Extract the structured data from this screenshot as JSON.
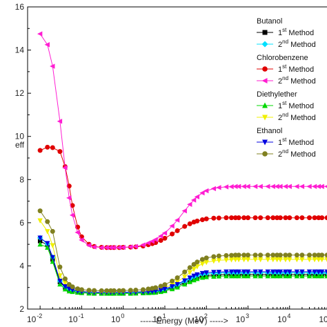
{
  "chart_data": {
    "type": "scatter",
    "title": "",
    "xlabel": "----- Energy (MeV) ----->",
    "ylabel_fragment": "eff",
    "x_scale": "log",
    "xlim": [
      0.005,
      100000
    ],
    "ylim": [
      2,
      16
    ],
    "yticks": [
      2,
      4,
      6,
      8,
      10,
      12,
      14,
      16
    ],
    "ytick_labels": [
      "2",
      "4",
      "6",
      "8",
      "10",
      "12",
      "14",
      "16"
    ],
    "xticks": [
      0.01,
      0.1,
      1,
      10,
      100,
      1000,
      10000,
      100000
    ],
    "xtick_labels": [
      {
        "base": "10",
        "exp": "-2"
      },
      {
        "base": "10",
        "exp": "-1"
      },
      {
        "base": "10",
        "exp": "0"
      },
      {
        "base": "10",
        "exp": "1"
      },
      {
        "base": "10",
        "exp": "2"
      },
      {
        "base": "10",
        "exp": "3"
      },
      {
        "base": "10",
        "exp": "4"
      },
      {
        "base": "10",
        "exp": "5"
      }
    ],
    "grid": false,
    "legend_position": "top-right",
    "legend_groups": [
      {
        "title": "Butanol",
        "entries": [
          {
            "num": "1",
            "sup": "st",
            "text": "Method",
            "series": 0
          },
          {
            "num": "2",
            "sup": "nd",
            "text": "Method",
            "series": 1
          }
        ]
      },
      {
        "title": "Chlorobenzene",
        "entries": [
          {
            "num": "1",
            "sup": "st",
            "text": "Method",
            "series": 2
          },
          {
            "num": "2",
            "sup": "nd",
            "text": "Method",
            "series": 3
          }
        ]
      },
      {
        "title": "Diethylether",
        "entries": [
          {
            "num": "1",
            "sup": "st",
            "text": "Method",
            "series": 4
          },
          {
            "num": "2",
            "sup": "nd",
            "text": "Method",
            "series": 5
          }
        ]
      },
      {
        "title": "Ethanol",
        "entries": [
          {
            "num": "1",
            "sup": "st",
            "text": "Method",
            "series": 6
          },
          {
            "num": "2",
            "sup": "nd",
            "text": "Method",
            "series": 7
          }
        ]
      }
    ],
    "x": [
      0.01,
      0.015,
      0.02,
      0.03,
      0.04,
      0.05,
      0.06,
      0.08,
      0.1,
      0.15,
      0.2,
      0.3,
      0.4,
      0.5,
      0.6,
      0.8,
      1,
      1.5,
      2,
      3,
      4,
      5,
      6,
      8,
      10,
      15,
      20,
      30,
      40,
      50,
      60,
      80,
      100,
      150,
      200,
      300,
      400,
      500,
      600,
      800,
      1000,
      1500,
      2000,
      3000,
      4000,
      5000,
      6000,
      8000,
      10000,
      15000,
      20000,
      30000,
      40000,
      50000,
      60000,
      80000,
      100000
    ],
    "series": [
      {
        "color": "#000000",
        "marker": "square",
        "values": [
          5.15,
          4.97,
          4.3,
          3.25,
          3.0,
          2.9,
          2.86,
          2.81,
          2.79,
          2.77,
          2.76,
          2.76,
          2.76,
          2.76,
          2.76,
          2.76,
          2.76,
          2.76,
          2.76,
          2.77,
          2.78,
          2.79,
          2.8,
          2.84,
          2.88,
          2.98,
          3.07,
          3.22,
          3.33,
          3.41,
          3.47,
          3.53,
          3.56,
          3.58,
          3.59,
          3.6,
          3.6,
          3.6,
          3.6,
          3.6,
          3.6,
          3.6,
          3.6,
          3.6,
          3.6,
          3.6,
          3.6,
          3.6,
          3.6,
          3.6,
          3.6,
          3.6,
          3.6,
          3.6,
          3.6,
          3.6,
          3.6
        ]
      },
      {
        "color": "#00e0ff",
        "marker": "diamond",
        "values": [
          5.3,
          5.02,
          4.4,
          3.3,
          3.05,
          2.93,
          2.88,
          2.83,
          2.8,
          2.78,
          2.77,
          2.77,
          2.77,
          2.77,
          2.77,
          2.77,
          2.77,
          2.77,
          2.77,
          2.78,
          2.79,
          2.8,
          2.82,
          2.86,
          2.91,
          3.02,
          3.12,
          3.28,
          3.4,
          3.49,
          3.55,
          3.61,
          3.64,
          3.66,
          3.67,
          3.68,
          3.68,
          3.68,
          3.68,
          3.68,
          3.68,
          3.68,
          3.68,
          3.68,
          3.68,
          3.68,
          3.68,
          3.68,
          3.68,
          3.68,
          3.68,
          3.68,
          3.68,
          3.68,
          3.68,
          3.68,
          3.68
        ]
      },
      {
        "color": "#e00000",
        "marker": "circle",
        "values": [
          9.35,
          9.5,
          9.48,
          9.3,
          8.6,
          7.7,
          6.8,
          5.8,
          5.35,
          5.0,
          4.9,
          4.86,
          4.85,
          4.85,
          4.85,
          4.85,
          4.86,
          4.87,
          4.88,
          4.92,
          4.98,
          5.03,
          5.08,
          5.18,
          5.28,
          5.48,
          5.63,
          5.83,
          5.95,
          6.03,
          6.08,
          6.14,
          6.18,
          6.21,
          6.22,
          6.23,
          6.23,
          6.23,
          6.23,
          6.23,
          6.23,
          6.23,
          6.23,
          6.23,
          6.23,
          6.23,
          6.23,
          6.23,
          6.23,
          6.23,
          6.23,
          6.23,
          6.23,
          6.23,
          6.23,
          6.23,
          6.23
        ]
      },
      {
        "color": "#ff1ed2",
        "marker": "triangle-left",
        "values": [
          14.75,
          14.25,
          13.25,
          10.7,
          8.55,
          7.15,
          6.35,
          5.55,
          5.2,
          4.95,
          4.88,
          4.85,
          4.85,
          4.85,
          4.85,
          4.85,
          4.86,
          4.88,
          4.9,
          4.97,
          5.06,
          5.14,
          5.22,
          5.38,
          5.52,
          5.85,
          6.12,
          6.55,
          6.85,
          7.05,
          7.2,
          7.38,
          7.48,
          7.58,
          7.63,
          7.66,
          7.67,
          7.68,
          7.68,
          7.68,
          7.68,
          7.68,
          7.68,
          7.68,
          7.68,
          7.68,
          7.68,
          7.68,
          7.68,
          7.68,
          7.68,
          7.68,
          7.68,
          7.68,
          7.68,
          7.68,
          7.68
        ]
      },
      {
        "color": "#00d800",
        "marker": "triangle-up",
        "values": [
          5.0,
          4.85,
          4.2,
          3.15,
          2.92,
          2.83,
          2.8,
          2.77,
          2.75,
          2.73,
          2.72,
          2.72,
          2.72,
          2.72,
          2.72,
          2.72,
          2.72,
          2.72,
          2.73,
          2.74,
          2.75,
          2.76,
          2.77,
          2.8,
          2.84,
          2.93,
          3.01,
          3.15,
          3.26,
          3.34,
          3.4,
          3.46,
          3.49,
          3.51,
          3.52,
          3.53,
          3.53,
          3.53,
          3.53,
          3.53,
          3.53,
          3.53,
          3.53,
          3.53,
          3.53,
          3.53,
          3.53,
          3.53,
          3.53,
          3.53,
          3.53,
          3.53,
          3.53,
          3.53,
          3.53,
          3.53,
          3.53
        ]
      },
      {
        "color": "#f0f000",
        "marker": "triangle-down",
        "values": [
          6.1,
          5.6,
          4.95,
          3.55,
          3.2,
          3.0,
          2.92,
          2.86,
          2.82,
          2.79,
          2.78,
          2.78,
          2.78,
          2.78,
          2.78,
          2.78,
          2.78,
          2.79,
          2.8,
          2.81,
          2.83,
          2.85,
          2.87,
          2.93,
          2.99,
          3.13,
          3.26,
          3.5,
          3.7,
          3.85,
          3.97,
          4.1,
          4.17,
          4.23,
          4.26,
          4.28,
          4.29,
          4.3,
          4.3,
          4.3,
          4.3,
          4.3,
          4.3,
          4.3,
          4.3,
          4.3,
          4.3,
          4.3,
          4.3,
          4.3,
          4.3,
          4.3,
          4.3,
          4.3,
          4.3,
          4.3,
          4.3
        ]
      },
      {
        "color": "#0000e0",
        "marker": "triangle-down",
        "values": [
          5.3,
          5.05,
          4.4,
          3.3,
          3.05,
          2.94,
          2.89,
          2.84,
          2.81,
          2.79,
          2.78,
          2.78,
          2.78,
          2.78,
          2.78,
          2.78,
          2.78,
          2.79,
          2.79,
          2.8,
          2.81,
          2.82,
          2.84,
          2.88,
          2.93,
          3.05,
          3.15,
          3.32,
          3.45,
          3.54,
          3.6,
          3.66,
          3.69,
          3.71,
          3.72,
          3.73,
          3.73,
          3.73,
          3.73,
          3.73,
          3.73,
          3.73,
          3.73,
          3.73,
          3.73,
          3.73,
          3.73,
          3.73,
          3.73,
          3.73,
          3.73,
          3.73,
          3.73,
          3.73,
          3.73,
          3.73,
          3.73
        ]
      },
      {
        "color": "#808020",
        "marker": "circle",
        "values": [
          6.55,
          6.05,
          5.6,
          3.95,
          3.4,
          3.14,
          3.03,
          2.94,
          2.9,
          2.87,
          2.86,
          2.85,
          2.85,
          2.85,
          2.85,
          2.85,
          2.86,
          2.87,
          2.88,
          2.9,
          2.93,
          2.96,
          2.99,
          3.06,
          3.13,
          3.3,
          3.45,
          3.72,
          3.92,
          4.07,
          4.18,
          4.3,
          4.37,
          4.43,
          4.46,
          4.48,
          4.49,
          4.5,
          4.5,
          4.5,
          4.5,
          4.5,
          4.5,
          4.5,
          4.5,
          4.5,
          4.5,
          4.5,
          4.5,
          4.5,
          4.5,
          4.5,
          4.5,
          4.5,
          4.5,
          4.5,
          4.5
        ]
      }
    ]
  }
}
